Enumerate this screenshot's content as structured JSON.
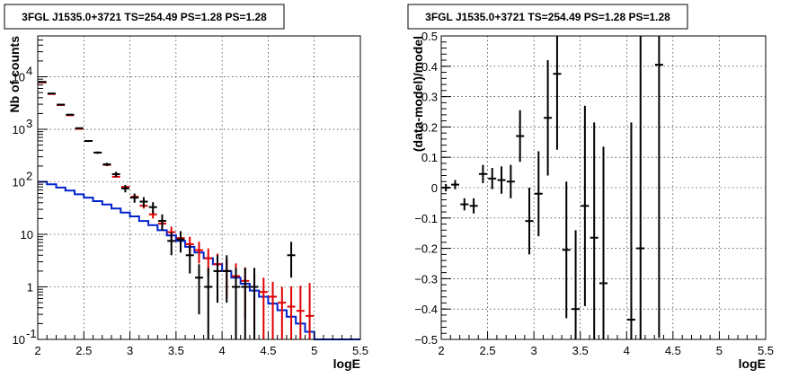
{
  "chart_data": [
    {
      "type": "line",
      "title": "3FGL J1535.0+3721 TS=254.49 PS=1.28 PS=1.28",
      "xlabel": "logE",
      "ylabel": "Nb of counts",
      "xlim": [
        2,
        5.5
      ],
      "ylim": [
        0.1,
        60000
      ],
      "yscale": "log",
      "grid": true,
      "x_ticks": [
        "2",
        "2.5",
        "3",
        "3.5",
        "4",
        "4.5",
        "5",
        "5.5"
      ],
      "y_ticks": [
        {
          "value": 0.1,
          "label": "10",
          "exp": "-1"
        },
        {
          "value": 1,
          "label": "1",
          "exp": ""
        },
        {
          "value": 10,
          "label": "10",
          "exp": ""
        },
        {
          "value": 100,
          "label": "10",
          "exp": "2"
        },
        {
          "value": 1000,
          "label": "10",
          "exp": "3"
        },
        {
          "value": 10000,
          "label": "10",
          "exp": "4"
        }
      ],
      "series": [
        {
          "color": "#000000",
          "kind": "errorbar",
          "x": [
            2.05,
            2.15,
            2.25,
            2.35,
            2.45,
            2.55,
            2.65,
            2.75,
            2.85,
            2.95,
            3.05,
            3.15,
            3.25,
            3.35,
            3.45,
            3.55,
            3.65,
            3.75,
            3.85,
            3.95,
            4.05,
            4.15,
            4.25,
            4.35,
            4.45,
            4.55,
            4.65,
            4.75,
            4.85,
            4.95
          ],
          "y": [
            8000,
            4800,
            2950,
            1900,
            1050,
            600,
            360,
            215,
            140,
            75,
            50,
            42,
            33,
            18,
            7.5,
            8,
            4,
            1.5,
            1,
            2,
            2,
            1,
            1,
            1,
            0,
            0,
            0,
            4,
            0,
            0
          ],
          "yerr_low": [
            90,
            70,
            55,
            44,
            33,
            25,
            19,
            15,
            16,
            12,
            10,
            9,
            8,
            6,
            3.5,
            3.5,
            2.2,
            1.2,
            0.9,
            1.5,
            1.5,
            0.9,
            0.9,
            0.9,
            0,
            0,
            0,
            2.5,
            0,
            0
          ],
          "yerr_high": [
            90,
            70,
            55,
            44,
            33,
            25,
            19,
            15,
            16,
            12,
            10,
            9,
            8,
            6,
            3.5,
            3.5,
            2.2,
            1.2,
            1.3,
            2.0,
            2.0,
            1.3,
            1.3,
            1.3,
            0,
            0,
            0,
            3.2,
            0,
            0
          ]
        },
        {
          "color": "#e00000",
          "kind": "errorbar",
          "x": [
            2.05,
            2.15,
            2.25,
            2.35,
            2.45,
            2.55,
            2.65,
            2.75,
            2.85,
            2.95,
            3.05,
            3.15,
            3.25,
            3.35,
            3.45,
            3.55,
            3.65,
            3.75,
            3.85,
            3.95,
            4.05,
            4.15,
            4.25,
            4.35,
            4.45,
            4.55,
            4.65,
            4.75,
            4.85,
            4.95
          ],
          "y": [
            7800,
            4700,
            2900,
            1850,
            1020,
            600,
            360,
            210,
            125,
            80,
            52,
            35,
            24,
            16,
            11,
            8.5,
            6.5,
            5,
            3.5,
            2.7,
            2,
            1.6,
            1.3,
            1.0,
            0.8,
            0.65,
            0.5,
            0.42,
            0.35,
            0.28
          ],
          "yerr_low": [
            0,
            0,
            0,
            0,
            0,
            0,
            0,
            0,
            0,
            0,
            4,
            4,
            4,
            3.5,
            3,
            2.8,
            2.5,
            2.2,
            1.9,
            1.6,
            1.4,
            1.2,
            1.05,
            0.85,
            0.7,
            0.6,
            0.47,
            0.4,
            0.34,
            0.27
          ],
          "yerr_high": [
            0,
            0,
            0,
            0,
            0,
            0,
            0,
            0,
            0,
            0,
            4,
            4,
            4,
            3.5,
            3,
            2.8,
            2.5,
            2.2,
            1.9,
            1.6,
            1.4,
            1.2,
            1.05,
            0.85,
            0.7,
            0.6,
            0.5,
            0.6,
            0.7,
            0.9
          ]
        },
        {
          "color": "#0022cc",
          "kind": "step",
          "x_edges": [
            2.0,
            2.1,
            2.2,
            2.3,
            2.4,
            2.5,
            2.6,
            2.7,
            2.8,
            2.9,
            3.0,
            3.1,
            3.2,
            3.3,
            3.4,
            3.5,
            3.6,
            3.7,
            3.8,
            3.9,
            4.0,
            4.1,
            4.2,
            4.3,
            4.4,
            4.5,
            4.6,
            4.7,
            4.8,
            4.9,
            5.0,
            5.1,
            5.5
          ],
          "y": [
            100,
            90,
            78,
            68,
            58,
            50,
            43,
            37,
            31,
            26,
            22,
            18,
            15,
            12,
            9.5,
            7.5,
            5.8,
            4.5,
            3.5,
            2.7,
            2.0,
            1.5,
            1.15,
            0.85,
            0.65,
            0.48,
            0.36,
            0.27,
            0.2,
            0.14,
            0.1,
            0.1
          ]
        }
      ]
    },
    {
      "type": "scatter",
      "title": "3FGL J1535.0+3721 TS=254.49 PS=1.28 PS=1.28",
      "xlabel": "logE",
      "ylabel": "(data-model)/model",
      "xlim": [
        2,
        5.5
      ],
      "ylim": [
        -0.5,
        0.5
      ],
      "grid": true,
      "x_ticks": [
        "2",
        "2.5",
        "3",
        "3.5",
        "4",
        "4.5",
        "5",
        "5.5"
      ],
      "y_ticks": [
        "−0.5",
        "−0.4",
        "−0.3",
        "−0.2",
        "−0.1",
        "0",
        "0.1",
        "0.2",
        "0.3",
        "0.4",
        "0.5"
      ],
      "series": [
        {
          "color": "#000000",
          "kind": "errorbar",
          "x": [
            2.05,
            2.15,
            2.25,
            2.35,
            2.45,
            2.55,
            2.65,
            2.75,
            2.85,
            2.95,
            3.05,
            3.15,
            3.25,
            3.35,
            3.45,
            3.55,
            3.65,
            3.75,
            4.05,
            4.15,
            4.35
          ],
          "y": [
            0.0,
            0.01,
            -0.055,
            -0.06,
            0.045,
            0.03,
            0.025,
            0.02,
            0.17,
            -0.11,
            -0.02,
            0.23,
            0.375,
            -0.205,
            -0.4,
            -0.06,
            -0.165,
            -0.315,
            -0.435,
            -0.2,
            0.405
          ],
          "yerr": [
            0.012,
            0.015,
            0.02,
            0.025,
            0.03,
            0.035,
            0.045,
            0.055,
            0.085,
            0.11,
            0.14,
            0.19,
            0.25,
            0.225,
            0.26,
            0.33,
            0.38,
            0.45,
            0.65,
            0.75,
            0.9
          ]
        }
      ]
    }
  ]
}
